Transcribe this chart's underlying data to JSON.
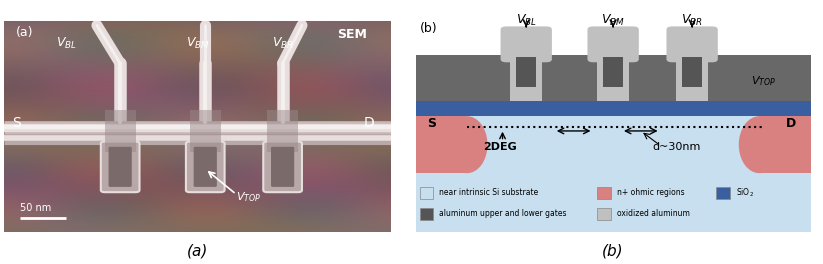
{
  "fig_width": 8.23,
  "fig_height": 2.64,
  "dpi": 100,
  "label_a": "(a)",
  "label_b": "(b)",
  "sem_label": "SEM",
  "s_label": "S",
  "d_label": "D",
  "scale_label": "50 nm",
  "twodeg_label": "2DEG",
  "d30nm_label": "d~30nm",
  "legend_items": [
    {
      "label": "near intrinsic Si substrate",
      "color": "#c8dff0"
    },
    {
      "label": "n+ ohmic regions",
      "color": "#d98080"
    },
    {
      "label": "SiO$_2$",
      "color": "#3a5fa0"
    },
    {
      "label": "aluminum upper and lower gates",
      "color": "#555555"
    },
    {
      "label": "oxidized aluminum",
      "color": "#c0c0c0"
    }
  ],
  "colors": {
    "background": "#ffffff",
    "sem_bg_dark": "#6b5555",
    "sem_bg_light": "#9a8080",
    "wire_bright": "#e8dede",
    "wire_white": "#f5f0f0",
    "top_gate_gray": "#686868",
    "oxide_light_gray": "#c0c0c0",
    "sio2_blue": "#3a5fa0",
    "si_light_blue": "#c8dff0",
    "ohmic_pink": "#d98080",
    "dark_gate": "#555555"
  }
}
